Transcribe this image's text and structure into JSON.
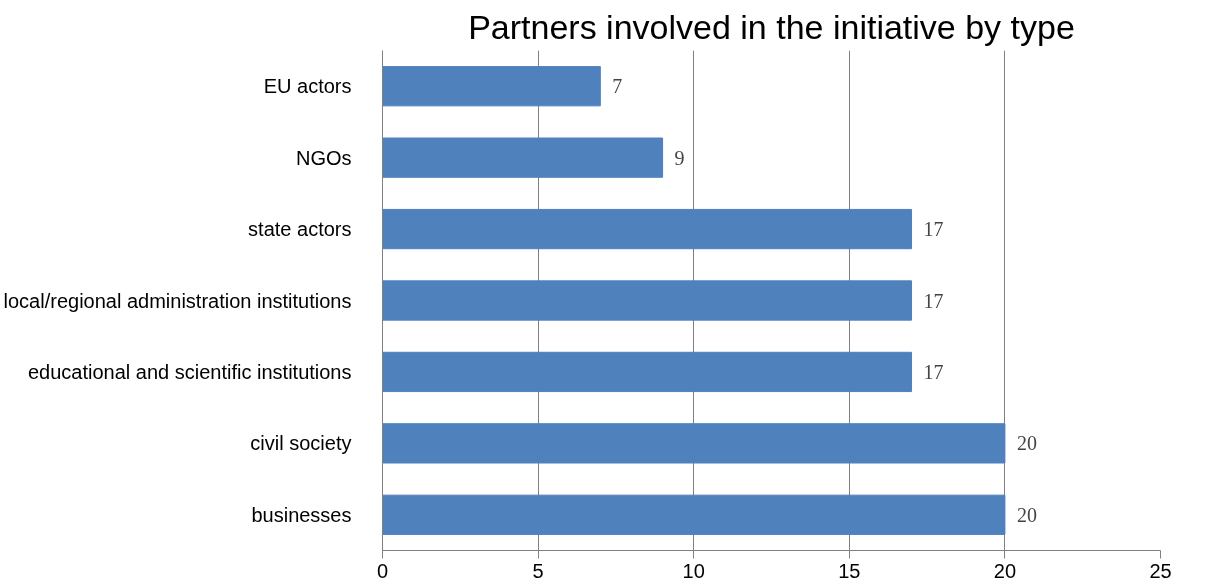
{
  "chart_data": {
    "type": "bar",
    "orientation": "horizontal",
    "title": "Partners involved in the initiative by type",
    "categories": [
      "EU actors",
      "NGOs",
      "state actors",
      "local/regional administration institutions",
      "educational and scientific institutions",
      "civil society",
      "businesses"
    ],
    "values": [
      7,
      9,
      17,
      17,
      17,
      20,
      20
    ],
    "color": "#4f81bd",
    "xlim": [
      0,
      25
    ],
    "xticks": [
      0,
      5,
      10,
      15,
      20,
      25
    ],
    "grid": "x",
    "data_labels": true
  }
}
